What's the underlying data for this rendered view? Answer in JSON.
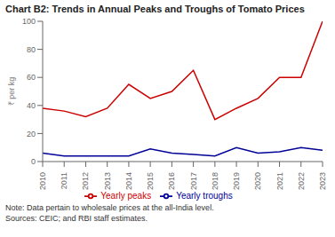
{
  "chart_data": {
    "type": "line",
    "title": "Chart B2: Trends in Annual Peaks and Troughs of Tomato Prices",
    "x": [
      2010,
      2011,
      2012,
      2013,
      2014,
      2015,
      2016,
      2017,
      2018,
      2019,
      2020,
      2021,
      2022,
      2023
    ],
    "xlim": [
      2010,
      2023
    ],
    "xticks": [
      2010,
      2011,
      2012,
      2013,
      2014,
      2015,
      2016,
      2017,
      2018,
      2019,
      2020,
      2021,
      2022,
      2023
    ],
    "ylabel": "₹ per kg",
    "ylim": [
      0,
      100
    ],
    "yticks": [
      0,
      20,
      40,
      60,
      80,
      100
    ],
    "series": [
      {
        "name": "Yearly peaks",
        "color": "#cc0000",
        "values": [
          38,
          36,
          32,
          38,
          55,
          45,
          50,
          65,
          30,
          38,
          45,
          60,
          60,
          100
        ]
      },
      {
        "name": "Yearly troughs",
        "color": "#000099",
        "values": [
          6,
          4,
          4,
          4,
          4,
          9,
          6,
          5,
          4,
          10,
          6,
          7,
          10,
          8
        ]
      }
    ],
    "annotations": [
      "Note: Data pertain to wholesale prices at the all-India level.",
      "Sources: CEIC; and RBI staff estimates."
    ],
    "legend": "bottom",
    "grid": false
  }
}
